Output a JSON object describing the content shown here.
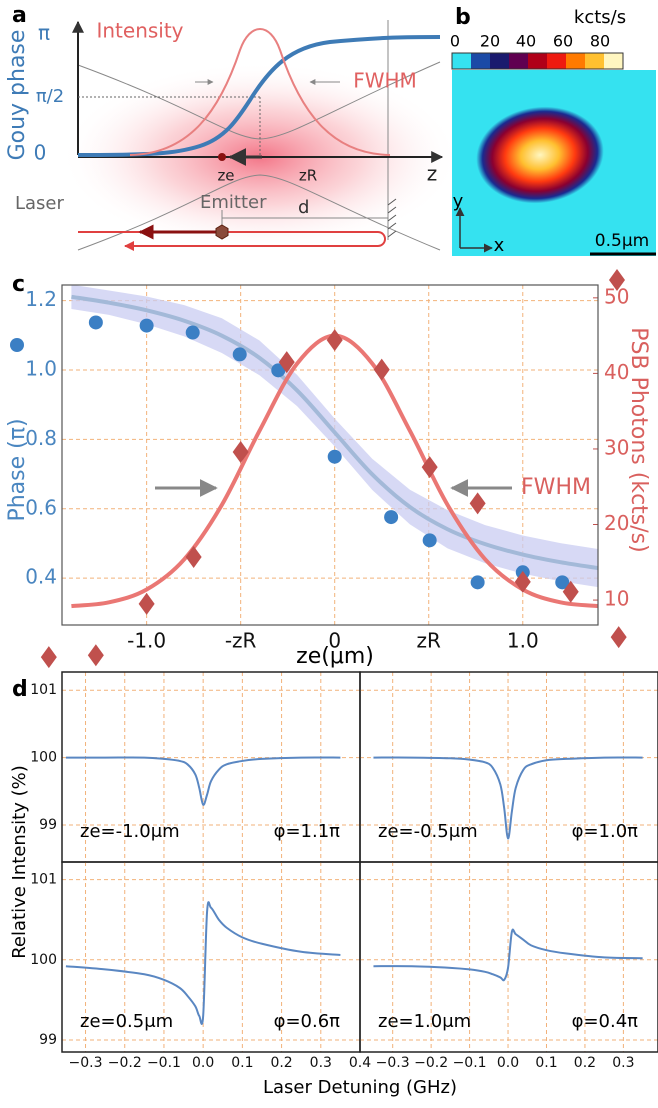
{
  "panel_a": {
    "label": "a",
    "y_label": "Gouy phase",
    "y_ticks": [
      "π",
      "π/2",
      "0"
    ],
    "intensity_label": "Intensity",
    "fwhm_label": "FWHM",
    "z_label": "z",
    "ze_label": "ze",
    "zr_label": "zR",
    "laser_label": "Laser",
    "emitter_label": "Emitter",
    "d_label": "d"
  },
  "panel_b": {
    "label": "b",
    "colorbar_unit": "kcts/s",
    "colorbar_ticks": [
      "0",
      "20",
      "40",
      "60",
      "80"
    ],
    "y_label": "y",
    "x_label": "x",
    "scale_bar": "0.5μm"
  },
  "panel_d": {
    "label": "d",
    "xlabel": "Laser Detuning (GHz)",
    "ylabel": "Relative Intensity (%)"
  },
  "chart_data": [
    {
      "type": "scatter",
      "label": "c",
      "xlabel": "ze(μm)",
      "ylabel": "Phase (π)",
      "y2label": "PSB Photons (kcts/s)",
      "annotation": "FWHM",
      "xlim": [
        -1.45,
        1.4
      ],
      "xticks": [
        {
          "value": -1.0,
          "label": "-1.0"
        },
        {
          "value": -0.5,
          "label": "-zR"
        },
        0,
        {
          "value": 0.5,
          "label": "zR"
        },
        {
          "value": 1.0,
          "label": "1.0"
        }
      ],
      "ylim": [
        0.265,
        1.245
      ],
      "yticks": [
        0.4,
        0.6,
        0.8,
        {
          "value": 1.0,
          "label": "1.0"
        },
        1.2
      ],
      "y2lim": [
        6.7,
        51.7
      ],
      "y2ticks": [
        10,
        20,
        30,
        40,
        50
      ],
      "grid": true,
      "band": {
        "color": "#c9ccf2",
        "x": [
          -1.4,
          -1.2,
          -1.0,
          -0.8,
          -0.6,
          -0.4,
          -0.2,
          0,
          0.2,
          0.4,
          0.6,
          0.8,
          1.0,
          1.2,
          1.4
        ],
        "upper": [
          1.246,
          1.229,
          1.212,
          1.187,
          1.149,
          1.085,
          0.986,
          0.86,
          0.744,
          0.655,
          0.596,
          0.553,
          0.523,
          0.501,
          0.484
        ],
        "lower": [
          1.176,
          1.159,
          1.132,
          1.097,
          1.049,
          0.985,
          0.896,
          0.78,
          0.654,
          0.555,
          0.486,
          0.443,
          0.413,
          0.391,
          0.374
        ]
      },
      "series": [
        {
          "color": "#a3b9d8",
          "style": "line",
          "x": [
            -1.4,
            -1.2,
            -1.0,
            -0.8,
            -0.6,
            -0.4,
            -0.2,
            0,
            0.2,
            0.4,
            0.6,
            0.8,
            1.0,
            1.2,
            1.4
          ],
          "values": [
            1.211,
            1.194,
            1.172,
            1.142,
            1.099,
            1.035,
            0.941,
            0.82,
            0.699,
            0.605,
            0.541,
            0.498,
            0.468,
            0.446,
            0.429
          ]
        },
        {
          "color": "#ea7774",
          "style": "line",
          "axis": "y2",
          "x": [
            -1.4,
            -1.2,
            -1.0,
            -0.8,
            -0.6,
            -0.4,
            -0.2,
            0,
            0.2,
            0.4,
            0.6,
            0.8,
            1.0,
            1.2,
            1.4
          ],
          "values": [
            9.2,
            9.7,
            11.4,
            15.4,
            22.6,
            32.4,
            41.3,
            45,
            41.3,
            32.4,
            22.6,
            15.4,
            11.4,
            9.7,
            9.2
          ]
        },
        {
          "color": "#3b7fc4",
          "marker": "circle",
          "x": [
            -1.27,
            -1.0,
            -0.755,
            -0.505,
            -0.3,
            0,
            0.3,
            0.505,
            0.76,
            1.0,
            1.21
          ],
          "values": [
            1.137,
            1.128,
            1.108,
            1.045,
            0.999,
            0.75,
            0.576,
            0.509,
            0.388,
            0.417,
            0.388
          ]
        },
        {
          "color": "#c0504d",
          "marker": "diamond",
          "axis": "y2",
          "x": [
            -1.52,
            -1.27,
            -1.0,
            -0.75,
            -0.5,
            -0.255,
            0,
            0.25,
            0.505,
            0.76,
            1.0,
            1.255,
            1.51
          ],
          "values": [
            2.45,
            2.7,
            9.5,
            15.7,
            29.6,
            41.5,
            44.4,
            40.5,
            27.6,
            22.8,
            12.4,
            11.1,
            5.1
          ]
        }
      ]
    },
    {
      "type": "line",
      "xlim": [
        -0.36,
        0.4
      ],
      "ylim": [
        98.45,
        101.27
      ],
      "yticks": [
        99,
        100,
        101
      ],
      "grid": true,
      "xtick_labels": false,
      "xticks": [
        {
          "value": -0.3,
          "label": "−0.3"
        },
        {
          "value": -0.2,
          "label": "−0.2"
        },
        {
          "value": -0.1,
          "label": "−0.1"
        },
        {
          "value": 0,
          "label": "0.0"
        },
        0.1,
        0.2,
        0.3,
        0.4
      ],
      "annotations": [
        "ze=-1.0μm",
        "φ=1.1π"
      ],
      "x": [
        -0.35,
        -0.25,
        -0.15,
        -0.1,
        -0.06,
        -0.04,
        -0.02,
        -0.01,
        0,
        0.01,
        0.02,
        0.04,
        0.06,
        0.1,
        0.15,
        0.25,
        0.35
      ],
      "series": [
        {
          "color": "#5a87c2",
          "values": [
            100,
            100,
            100,
            99.98,
            99.95,
            99.9,
            99.75,
            99.55,
            99.3,
            99.45,
            99.65,
            99.82,
            99.9,
            99.95,
            99.98,
            100,
            100
          ]
        }
      ]
    },
    {
      "type": "line",
      "xlim": [
        -0.385,
        0.39
      ],
      "ylim": [
        98.45,
        101.27
      ],
      "yticks": [
        99,
        100,
        101
      ],
      "grid": true,
      "xtick_labels": false,
      "ytick_labels": false,
      "xticks": [
        {
          "value": -0.3,
          "label": "−0.3"
        },
        {
          "value": -0.2,
          "label": "−0.2"
        },
        {
          "value": -0.1,
          "label": "−0.1"
        },
        {
          "value": 0,
          "label": "0.0"
        },
        0.1,
        0.2,
        0.3
      ],
      "annotations": [
        "ze=-0.5μm",
        "φ=1.0π"
      ],
      "x": [
        -0.35,
        -0.25,
        -0.15,
        -0.1,
        -0.06,
        -0.04,
        -0.02,
        -0.01,
        0,
        0.01,
        0.02,
        0.04,
        0.06,
        0.1,
        0.15,
        0.25,
        0.35
      ],
      "series": [
        {
          "color": "#5a87c2",
          "values": [
            100,
            100,
            99.99,
            99.97,
            99.93,
            99.85,
            99.6,
            99.25,
            98.8,
            99.2,
            99.55,
            99.82,
            99.9,
            99.96,
            99.98,
            100,
            100
          ]
        }
      ]
    },
    {
      "type": "line",
      "xlim": [
        -0.36,
        0.4
      ],
      "ylim": [
        98.85,
        101.22
      ],
      "yticks": [
        99,
        100,
        101
      ],
      "grid": true,
      "xticks": [
        {
          "value": -0.3,
          "label": "−0.3"
        },
        {
          "value": -0.2,
          "label": "−0.2"
        },
        {
          "value": -0.1,
          "label": "−0.1"
        },
        {
          "value": 0,
          "label": "0.0"
        },
        0.1,
        0.2,
        0.3,
        0.4
      ],
      "annotations": [
        "ze=0.5μm",
        "φ=0.6π"
      ],
      "x": [
        -0.35,
        -0.25,
        -0.15,
        -0.1,
        -0.06,
        -0.04,
        -0.02,
        -0.01,
        0,
        0.01,
        0.02,
        0.04,
        0.06,
        0.1,
        0.15,
        0.25,
        0.35
      ],
      "series": [
        {
          "color": "#5a87c2",
          "values": [
            99.92,
            99.88,
            99.82,
            99.75,
            99.65,
            99.55,
            99.42,
            99.3,
            99.3,
            100.6,
            100.65,
            100.5,
            100.4,
            100.28,
            100.2,
            100.1,
            100.06
          ]
        }
      ]
    },
    {
      "type": "line",
      "xlim": [
        -0.385,
        0.39
      ],
      "ylim": [
        98.85,
        101.22
      ],
      "yticks": [
        99,
        100,
        101
      ],
      "grid": true,
      "ytick_labels": false,
      "xticks": [
        {
          "value": -0.3,
          "label": "−0.3"
        },
        {
          "value": -0.2,
          "label": "−0.2"
        },
        {
          "value": -0.1,
          "label": "−0.1"
        },
        {
          "value": 0,
          "label": "0.0"
        },
        0.1,
        0.2,
        0.3
      ],
      "annotations": [
        "ze=1.0μm",
        "φ=0.4π"
      ],
      "x": [
        -0.35,
        -0.25,
        -0.15,
        -0.1,
        -0.06,
        -0.04,
        -0.02,
        -0.01,
        0,
        0.01,
        0.02,
        0.04,
        0.06,
        0.1,
        0.15,
        0.25,
        0.35
      ],
      "series": [
        {
          "color": "#5a87c2",
          "values": [
            99.92,
            99.92,
            99.9,
            99.88,
            99.85,
            99.82,
            99.78,
            99.75,
            99.9,
            100.35,
            100.32,
            100.25,
            100.18,
            100.12,
            100.08,
            100.03,
            100.02
          ]
        }
      ]
    }
  ]
}
